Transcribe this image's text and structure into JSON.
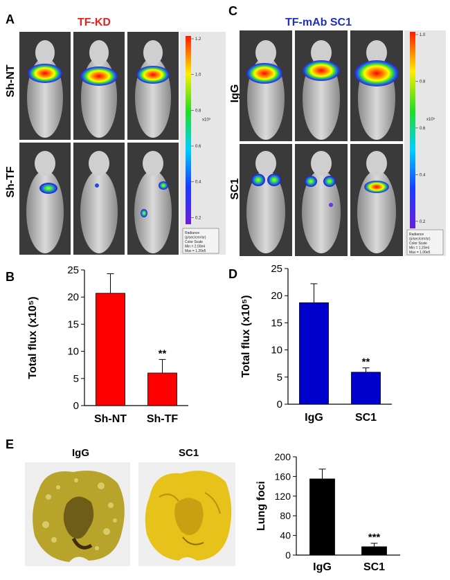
{
  "panel_a": {
    "letter": "A",
    "title": "TF-KD",
    "title_color": "#e8201e",
    "row_labels": [
      "Sh-NT",
      "Sh-TF"
    ],
    "colorbar_ticks": [
      "1.2",
      "1.0",
      "0.8",
      "0.6",
      "0.4",
      "0.2"
    ],
    "colorbar_unit": "x10⁵",
    "colorbar_legend": [
      "Radiance",
      "(p/sec/cm²/sr)",
      "Color Scale",
      "Min = 2.00e4",
      "Max = 1.20e5"
    ]
  },
  "panel_c": {
    "letter": "C",
    "title": "TF-mAb SC1",
    "title_color": "#1f2ec4",
    "row_labels": [
      "IgG",
      "SC1"
    ],
    "colorbar_ticks": [
      "1.0",
      "0.8",
      "0.6",
      "0.4",
      "0.2"
    ],
    "colorbar_unit": "x10⁵",
    "colorbar_legend": [
      "Radiance",
      "(p/sec/cm²/sr)",
      "Color Scale",
      "Min = 1.20e4",
      "Max = 1.00e5"
    ]
  },
  "panel_e": {
    "letter": "E",
    "photo_labels": [
      "IgG",
      "SC1"
    ]
  },
  "chart_data": [
    {
      "id": "B",
      "type": "bar",
      "letter": "B",
      "categories": [
        "Sh-NT",
        "Sh-TF"
      ],
      "values": [
        20.7,
        6.0
      ],
      "errors": [
        3.6,
        2.5
      ],
      "significance": [
        "",
        "**"
      ],
      "color": "#ff0000",
      "ylabel": "Total flux (x10⁵)",
      "ylim": [
        0,
        25
      ],
      "yticks": [
        0,
        5,
        10,
        15,
        20,
        25
      ]
    },
    {
      "id": "D",
      "type": "bar",
      "letter": "D",
      "categories": [
        "IgG",
        "SC1"
      ],
      "values": [
        18.7,
        5.9
      ],
      "errors": [
        3.5,
        0.8
      ],
      "significance": [
        "",
        "**"
      ],
      "color": "#0000cc",
      "ylabel": "Total flux (x10⁵)",
      "ylim": [
        0,
        25
      ],
      "yticks": [
        0,
        5,
        10,
        15,
        20,
        25
      ]
    },
    {
      "id": "E",
      "type": "bar",
      "letter": "",
      "categories": [
        "IgG",
        "SC1"
      ],
      "values": [
        155,
        17
      ],
      "errors": [
        20,
        7
      ],
      "significance": [
        "",
        "***"
      ],
      "color": "#000000",
      "ylabel": "Lung foci",
      "ylim": [
        0,
        200
      ],
      "yticks": [
        0,
        40,
        80,
        120,
        160,
        200
      ]
    }
  ]
}
